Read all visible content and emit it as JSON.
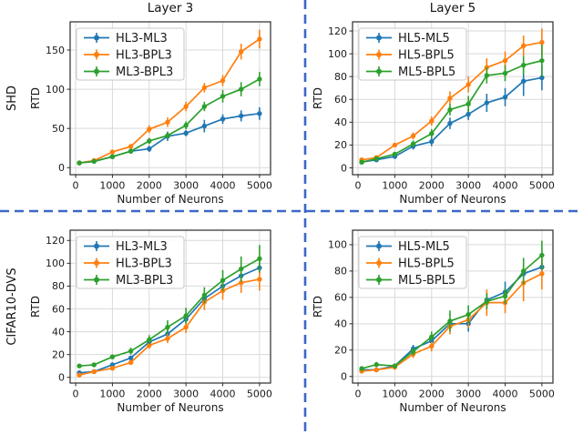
{
  "figure": {
    "columns": [
      {
        "title": "Layer 3"
      },
      {
        "title": "Layer 5"
      }
    ],
    "rows": [
      {
        "label": "SHD"
      },
      {
        "label": "CIFAR10-DVS"
      }
    ],
    "separator_color": "#3a68c8"
  },
  "colors": {
    "blue": "#1f77b4",
    "orange": "#ff7f0e",
    "green": "#2ca02c",
    "grid": "#d9d9d9",
    "spine": "#2b2b2b",
    "legend_border": "#c9c9c9"
  },
  "chart_data": [
    {
      "id": "shd-layer3",
      "type": "line",
      "title": "Layer 3",
      "row": "SHD",
      "xlabel": "Number of Neurons",
      "ylabel": "RTD",
      "x": [
        100,
        500,
        1000,
        1500,
        2000,
        2500,
        3000,
        3500,
        4000,
        4500,
        5000
      ],
      "xticks": [
        0,
        1000,
        2000,
        3000,
        4000,
        5000
      ],
      "yticks": [
        0,
        50,
        100,
        150
      ],
      "xlim": [
        -150,
        5300
      ],
      "ylim": [
        -9,
        186
      ],
      "grid": true,
      "legend_position": "upper left",
      "series": [
        {
          "name": "HL3-ML3",
          "color": "#1f77b4",
          "values": [
            6,
            8,
            14,
            21,
            24,
            40,
            44,
            53,
            62,
            66,
            69
          ],
          "errors": [
            1,
            1,
            2,
            2,
            4,
            6,
            4,
            8,
            6,
            7,
            8
          ]
        },
        {
          "name": "HL3-BPL3",
          "color": "#ff7f0e",
          "values": [
            6,
            9,
            20,
            27,
            49,
            58,
            78,
            102,
            111,
            148,
            164
          ],
          "errors": [
            1,
            1,
            2,
            3,
            5,
            6,
            6,
            6,
            7,
            10,
            12
          ]
        },
        {
          "name": "ML3-BPL3",
          "color": "#2ca02c",
          "values": [
            6,
            8,
            14,
            21,
            34,
            41,
            54,
            78,
            91,
            100,
            113
          ],
          "errors": [
            1,
            1,
            2,
            2,
            4,
            4,
            5,
            6,
            8,
            9,
            9
          ]
        }
      ]
    },
    {
      "id": "shd-layer5",
      "type": "line",
      "title": "Layer 5",
      "row": "SHD",
      "xlabel": "Number of Neurons",
      "ylabel": "RTD",
      "x": [
        100,
        500,
        1000,
        1500,
        2000,
        2500,
        3000,
        3500,
        4000,
        4500,
        5000
      ],
      "xticks": [
        0,
        1000,
        2000,
        3000,
        4000,
        5000
      ],
      "yticks": [
        0,
        20,
        40,
        60,
        80,
        100,
        120
      ],
      "xlim": [
        -150,
        5300
      ],
      "ylim": [
        -6,
        128
      ],
      "grid": true,
      "legend_position": "upper left",
      "series": [
        {
          "name": "HL5-ML5",
          "color": "#1f77b4",
          "values": [
            5,
            7,
            10,
            19,
            23,
            39,
            47,
            57,
            62,
            76,
            79
          ],
          "errors": [
            1,
            1,
            2,
            3,
            4,
            5,
            5,
            8,
            8,
            13,
            11
          ]
        },
        {
          "name": "HL5-BPL5",
          "color": "#ff7f0e",
          "values": [
            7,
            9,
            20,
            28,
            41,
            61,
            73,
            88,
            94,
            107,
            110
          ],
          "errors": [
            1,
            1,
            2,
            3,
            4,
            6,
            7,
            8,
            8,
            9,
            12
          ]
        },
        {
          "name": "ML5-BPL5",
          "color": "#2ca02c",
          "values": [
            5,
            8,
            12,
            21,
            30,
            51,
            56,
            81,
            83,
            90,
            94
          ],
          "errors": [
            1,
            1,
            2,
            3,
            4,
            5,
            7,
            7,
            7,
            8,
            14
          ]
        }
      ]
    },
    {
      "id": "cifar10dvs-layer3",
      "type": "line",
      "title": "",
      "row": "CIFAR10-DVS",
      "xlabel": "Number of Neurons",
      "ylabel": "RTD",
      "x": [
        100,
        500,
        1000,
        1500,
        2000,
        2500,
        3000,
        3500,
        4000,
        4500,
        5000
      ],
      "xticks": [
        0,
        1000,
        2000,
        3000,
        4000,
        5000
      ],
      "yticks": [
        0,
        20,
        40,
        60,
        80,
        100,
        120
      ],
      "xlim": [
        -150,
        5300
      ],
      "ylim": [
        -5,
        129
      ],
      "grid": true,
      "legend_position": "upper left",
      "series": [
        {
          "name": "HL3-ML3",
          "color": "#1f77b4",
          "values": [
            4,
            5,
            11,
            17,
            31,
            38,
            51,
            69,
            80,
            89,
            96
          ],
          "errors": [
            1,
            1,
            2,
            2,
            3,
            4,
            4,
            4,
            4,
            5,
            5
          ]
        },
        {
          "name": "HL3-BPL3",
          "color": "#ff7f0e",
          "values": [
            2,
            5,
            8,
            13,
            28,
            34,
            44,
            66,
            76,
            83,
            86
          ],
          "errors": [
            1,
            1,
            2,
            2,
            3,
            4,
            5,
            7,
            8,
            9,
            10
          ]
        },
        {
          "name": "ML3-BPL3",
          "color": "#2ca02c",
          "values": [
            10,
            11,
            18,
            23,
            33,
            44,
            54,
            72,
            85,
            95,
            104
          ],
          "errors": [
            1,
            1,
            2,
            3,
            4,
            6,
            7,
            7,
            9,
            11,
            12
          ]
        }
      ]
    },
    {
      "id": "cifar10dvs-layer5",
      "type": "line",
      "title": "",
      "row": "CIFAR10-DVS",
      "xlabel": "Number of Neurons",
      "ylabel": "RTD",
      "x": [
        100,
        500,
        1000,
        1500,
        2000,
        2500,
        3000,
        3500,
        4000,
        4500,
        5000
      ],
      "xticks": [
        0,
        1000,
        2000,
        3000,
        4000,
        5000
      ],
      "yticks": [
        0,
        20,
        40,
        60,
        80,
        100
      ],
      "xlim": [
        -150,
        5300
      ],
      "ylim": [
        -5,
        111
      ],
      "grid": true,
      "legend_position": "upper left",
      "series": [
        {
          "name": "HL5-ML5",
          "color": "#1f77b4",
          "values": [
            5,
            5,
            8,
            21,
            27,
            40,
            40,
            58,
            64,
            78,
            83
          ],
          "errors": [
            1,
            1,
            1,
            3,
            3,
            4,
            6,
            6,
            8,
            4,
            4
          ]
        },
        {
          "name": "HL5-BPL5",
          "color": "#ff7f0e",
          "values": [
            4,
            5,
            7,
            17,
            23,
            38,
            43,
            56,
            56,
            71,
            78
          ],
          "errors": [
            1,
            1,
            1,
            3,
            4,
            6,
            6,
            10,
            8,
            14,
            12
          ]
        },
        {
          "name": "ML5-BPL5",
          "color": "#2ca02c",
          "values": [
            6,
            9,
            8,
            19,
            30,
            42,
            47,
            57,
            61,
            80,
            92
          ],
          "errors": [
            1,
            2,
            1,
            3,
            4,
            8,
            7,
            6,
            6,
            10,
            11
          ]
        }
      ]
    }
  ]
}
